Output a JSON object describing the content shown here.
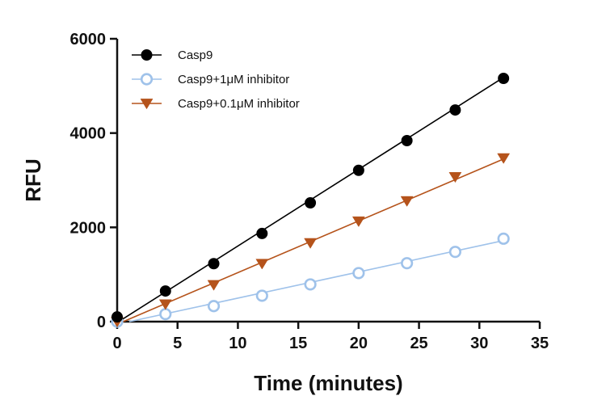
{
  "chart_data": {
    "type": "line",
    "title": "",
    "xlabel": "Time (minutes)",
    "ylabel": "RFU",
    "xlim": [
      0,
      35
    ],
    "ylim": [
      0,
      6000
    ],
    "xticks": [
      0,
      5,
      10,
      15,
      20,
      25,
      30,
      35
    ],
    "yticks": [
      0,
      2000,
      4000,
      6000
    ],
    "grid": false,
    "legend_position": "top-left",
    "series": [
      {
        "name": "Casp9",
        "color": "#000000",
        "marker": "circle-filled",
        "x": [
          0,
          4,
          8,
          12,
          16,
          20,
          24,
          28,
          32
        ],
        "y": [
          100,
          650,
          1230,
          1870,
          2520,
          3210,
          3840,
          4490,
          5160
        ],
        "fit": [
          [
            0,
            -20
          ],
          [
            32,
            5180
          ]
        ]
      },
      {
        "name": "Casp9+1μM inhibitor",
        "color": "#9fc2ea",
        "marker": "circle-open",
        "x": [
          0,
          4,
          8,
          12,
          16,
          20,
          24,
          28,
          32
        ],
        "y": [
          0,
          160,
          330,
          550,
          790,
          1030,
          1240,
          1480,
          1760
        ],
        "fit": [
          [
            1,
            0
          ],
          [
            32,
            1720
          ]
        ]
      },
      {
        "name": "Casp9+0.1μM inhibitor",
        "color": "#b5531b",
        "marker": "triangle-down",
        "x": [
          0,
          4,
          8,
          12,
          16,
          20,
          24,
          28,
          32
        ],
        "y": [
          0,
          370,
          780,
          1230,
          1670,
          2130,
          2560,
          3070,
          3470
        ],
        "fit": [
          [
            0.5,
            0
          ],
          [
            32,
            3450
          ]
        ]
      }
    ]
  }
}
